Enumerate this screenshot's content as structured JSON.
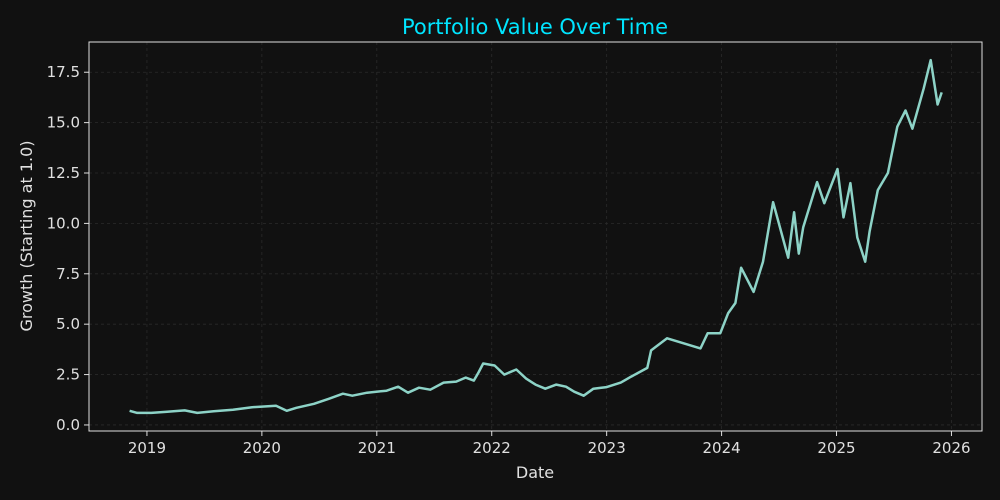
{
  "chart_data": {
    "type": "line",
    "title": "Portfolio Value Over Time",
    "xlabel": "Date",
    "ylabel": "Growth (Starting at 1.0)",
    "xlim": [
      "2018-07-01",
      "2026-04-08"
    ],
    "ylim": [
      -0.3,
      19.0
    ],
    "x_ticks": [
      "2019",
      "2020",
      "2021",
      "2022",
      "2023",
      "2024",
      "2025",
      "2026"
    ],
    "y_ticks": [
      "0.0",
      "2.5",
      "5.0",
      "7.5",
      "10.0",
      "12.5",
      "15.0",
      "17.5"
    ],
    "grid": true,
    "legend": "none",
    "colors": {
      "background": "#111111",
      "line": "#8dd3c7",
      "title": "#00e5ff",
      "axes": "#e0e0e0"
    },
    "series": [
      {
        "x": [
          "2018-11-07",
          "2018-12-01",
          "2019-01-15",
          "2019-03-01",
          "2019-05-01",
          "2019-06-10",
          "2019-08-01",
          "2019-10-01",
          "2019-12-01",
          "2020-02-15",
          "2020-03-20",
          "2020-04-20",
          "2020-06-15",
          "2020-08-01",
          "2020-09-15",
          "2020-10-15",
          "2020-12-01",
          "2021-02-01",
          "2021-03-10",
          "2021-04-10",
          "2021-05-15",
          "2021-06-20",
          "2021-08-01",
          "2021-09-10",
          "2021-10-10",
          "2021-11-05",
          "2021-11-20",
          "2021-12-05",
          "2022-01-10",
          "2022-02-10",
          "2022-03-20",
          "2022-04-20",
          "2022-05-20",
          "2022-06-20",
          "2022-07-25",
          "2022-08-25",
          "2022-09-20",
          "2022-10-20",
          "2022-11-20",
          "2022-12-15",
          "2023-01-01",
          "2023-02-15",
          "2023-03-20",
          "2023-05-10",
          "2023-05-22",
          "2023-07-12",
          "2023-10-26",
          "2023-11-18",
          "2023-12-28",
          "2024-01-22",
          "2024-02-14",
          "2024-03-03",
          "2024-04-12",
          "2024-05-12",
          "2024-06-13",
          "2024-07-31",
          "2024-08-19",
          "2024-09-03",
          "2024-09-17",
          "2024-10-31",
          "2024-11-23",
          "2025-01-04",
          "2025-01-23",
          "2025-02-14",
          "2025-03-08",
          "2025-04-02",
          "2025-04-16",
          "2025-05-12",
          "2025-06-13",
          "2025-07-13",
          "2025-08-08",
          "2025-08-30",
          "2025-10-05",
          "2025-10-27",
          "2025-11-18",
          "2025-12-01"
        ],
        "y": [
          0.7,
          0.6,
          0.6,
          0.65,
          0.72,
          0.6,
          0.68,
          0.75,
          0.88,
          0.95,
          0.7,
          0.85,
          1.05,
          1.3,
          1.55,
          1.45,
          1.6,
          1.7,
          1.9,
          1.6,
          1.85,
          1.75,
          2.1,
          2.15,
          2.35,
          2.2,
          2.6,
          3.05,
          2.95,
          2.5,
          2.75,
          2.3,
          2.0,
          1.8,
          2.0,
          1.9,
          1.65,
          1.45,
          1.8,
          1.85,
          1.88,
          2.1,
          2.4,
          2.83,
          3.7,
          4.3,
          3.8,
          4.55,
          4.55,
          5.55,
          6.05,
          7.8,
          6.6,
          8.1,
          11.05,
          8.3,
          10.55,
          8.5,
          9.8,
          12.05,
          11.0,
          12.7,
          10.3,
          12.0,
          9.3,
          8.1,
          9.6,
          11.65,
          12.5,
          14.8,
          15.6,
          14.7,
          16.7,
          18.1,
          15.9,
          16.5
        ]
      }
    ]
  }
}
